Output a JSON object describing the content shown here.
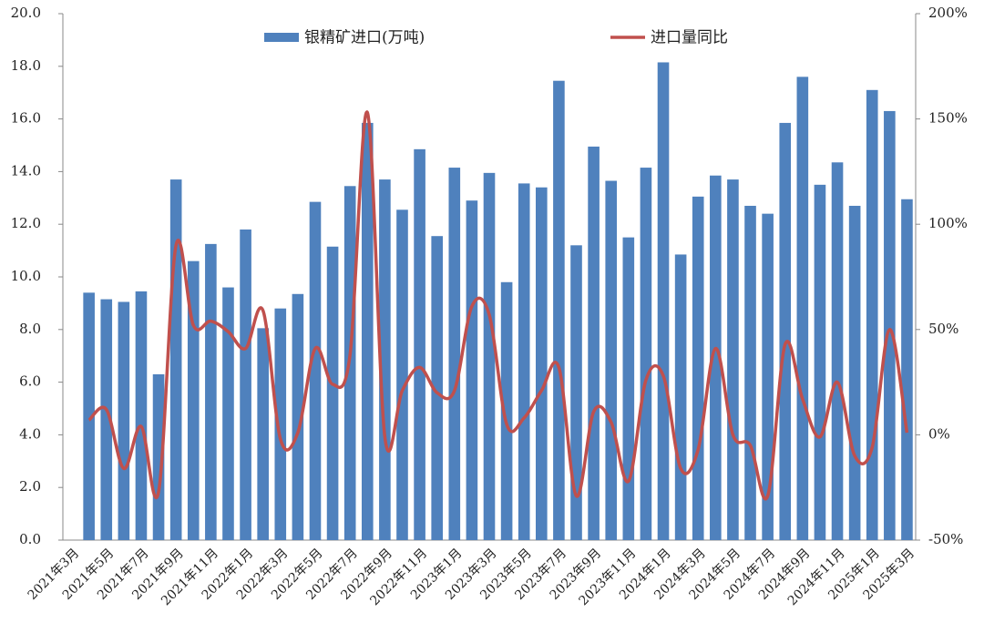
{
  "chart_data": {
    "type": "bar-line",
    "categories": [
      "2021年3月",
      null,
      "2021年5月",
      null,
      "2021年7月",
      null,
      "2021年9月",
      null,
      "2021年11月",
      null,
      "2022年1月",
      null,
      "2022年3月",
      null,
      "2022年5月",
      null,
      "2022年7月",
      null,
      "2022年9月",
      null,
      "2022年11月",
      null,
      "2023年1月",
      null,
      "2023年3月",
      null,
      "2023年5月",
      null,
      "2023年7月",
      null,
      "2023年9月",
      null,
      "2023年11月",
      null,
      "2024年1月",
      null,
      "2024年3月",
      null,
      "2024年5月",
      null,
      "2024年7月",
      null,
      "2024年9月",
      null,
      "2024年11月",
      null,
      "2025年1月",
      null,
      "2025年3月"
    ],
    "series": [
      {
        "name": "银精矿进口(万吨)",
        "type": "bar",
        "color": "#4f81bd",
        "values": [
          null,
          9.4,
          9.15,
          9.05,
          9.45,
          6.3,
          13.7,
          10.6,
          11.25,
          9.6,
          11.8,
          8.05,
          8.8,
          9.35,
          12.85,
          11.15,
          13.45,
          15.85,
          13.7,
          12.55,
          14.85,
          11.55,
          14.15,
          12.9,
          13.95,
          9.8,
          13.55,
          13.4,
          17.45,
          11.2,
          14.95,
          13.65,
          11.5,
          14.15,
          18.15,
          10.85,
          13.05,
          13.85,
          13.7,
          12.7,
          12.4,
          15.85,
          17.6,
          13.5,
          14.35,
          12.7,
          17.1,
          16.3,
          12.95
        ]
      },
      {
        "name": "进口量同比",
        "type": "line",
        "axis": "y2",
        "color": "#c0504d",
        "smooth": true,
        "values": [
          null,
          7,
          12,
          -16,
          4,
          -27,
          90,
          52,
          54,
          49,
          41,
          59,
          -2,
          1,
          41,
          24,
          38,
          153,
          -1,
          21,
          32,
          20,
          21,
          61,
          57,
          5,
          8,
          21,
          32,
          -29,
          11,
          6,
          -22,
          26,
          28,
          -16,
          -7,
          41,
          0,
          -5,
          -29,
          43,
          17,
          -1,
          25,
          -10,
          -6,
          50,
          1
        ]
      }
    ],
    "ylim": [
      0,
      20
    ],
    "yticks": [
      {
        "value": 0,
        "label": "0.0"
      },
      {
        "value": 2,
        "label": "2.0"
      },
      {
        "value": 4,
        "label": "4.0"
      },
      {
        "value": 6,
        "label": "6.0"
      },
      {
        "value": 8,
        "label": "8.0"
      },
      {
        "value": 10,
        "label": "10.0"
      },
      {
        "value": 12,
        "label": "12.0"
      },
      {
        "value": 14,
        "label": "14.0"
      },
      {
        "value": 16,
        "label": "16.0"
      },
      {
        "value": 18,
        "label": "18.0"
      },
      {
        "value": 20,
        "label": "20.0"
      }
    ],
    "y2lim": [
      -50,
      200
    ],
    "y2ticks": [
      {
        "value": -50,
        "label": "-50%"
      },
      {
        "value": 0,
        "label": "0%"
      },
      {
        "value": 50,
        "label": "50%"
      },
      {
        "value": 100,
        "label": "100%"
      },
      {
        "value": 150,
        "label": "150%"
      },
      {
        "value": 200,
        "label": "200%"
      }
    ],
    "grid": false,
    "legend": "top"
  }
}
